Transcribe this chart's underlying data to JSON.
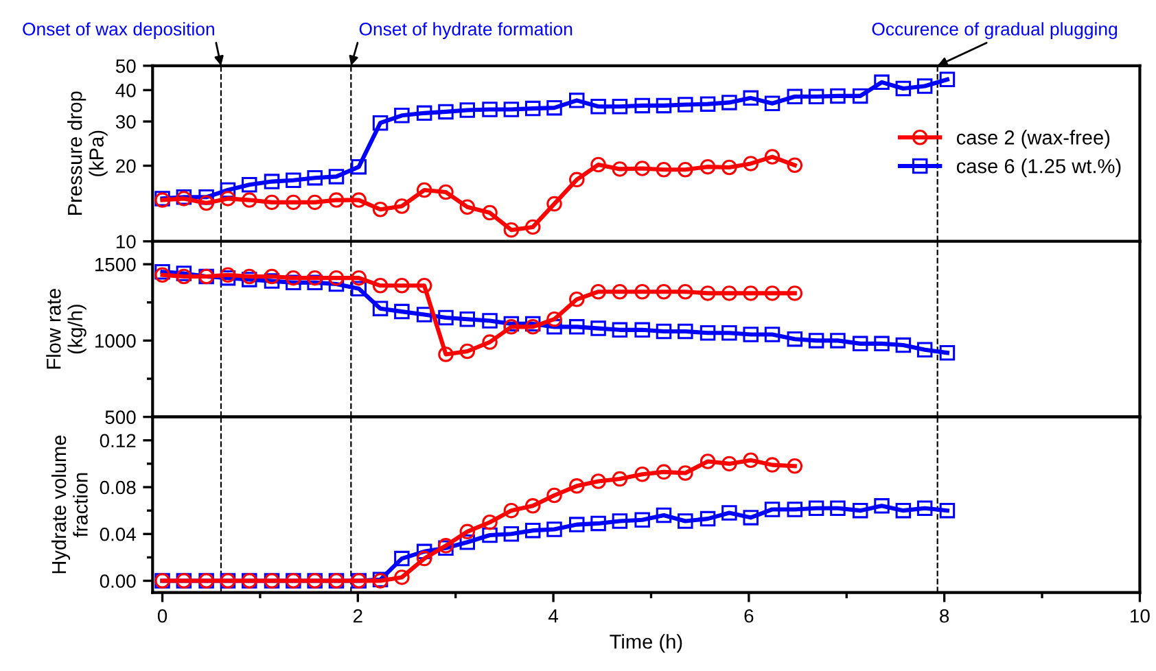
{
  "chart_data": [
    {
      "type": "line",
      "ylabel": "Pressure drop\n(kPa)",
      "log": "y",
      "xlim": [
        -0.1,
        10
      ],
      "xticks": [
        0,
        2,
        4,
        6,
        8,
        10,
        {
          "value": 1,
          "label": null
        },
        {
          "value": 3,
          "label": null
        },
        {
          "value": 5,
          "label": null
        },
        {
          "value": 7,
          "label": null
        },
        {
          "value": 9,
          "label": null
        }
      ],
      "ylim": [
        10,
        50
      ],
      "yticks": [
        10,
        20,
        30,
        40,
        50
      ],
      "tick_labels": "y",
      "grid": false,
      "legend": "right",
      "line_style": "solid",
      "ref_lines": [
        {
          "axis": "x",
          "value": 0.6,
          "label": "Onset of wax deposition",
          "color": "#000000",
          "line_style": "dashed"
        },
        {
          "axis": "x",
          "value": 1.93,
          "label": "Onset of hydrate formation",
          "color": "#000000",
          "line_style": "dashed"
        },
        {
          "axis": "x",
          "value": 7.93,
          "label": "Occurence of gradual plugging",
          "color": "#000000",
          "line_style": "dashed"
        }
      ],
      "series": [
        {
          "name": "case 2 (wax-free)",
          "color": "#ff0000",
          "marker": "circle",
          "x": [
            0,
            0.22,
            0.45,
            0.67,
            0.89,
            1.12,
            1.34,
            1.56,
            1.78,
            2.01,
            2.23,
            2.45,
            2.68,
            2.9,
            3.12,
            3.35,
            3.57,
            3.79,
            4.01,
            4.24,
            4.46,
            4.68,
            4.91,
            5.13,
            5.35,
            5.58,
            5.8,
            6.02,
            6.24,
            6.47
          ],
          "values": [
            14.6,
            14.8,
            14.2,
            14.8,
            14.6,
            14.3,
            14.3,
            14.3,
            14.6,
            14.6,
            13.4,
            13.8,
            16.0,
            15.7,
            13.7,
            13.0,
            11.1,
            11.4,
            14.1,
            17.6,
            20.2,
            19.4,
            19.5,
            19.3,
            19.3,
            19.8,
            19.7,
            20.4,
            21.7,
            20.1
          ]
        },
        {
          "name": "case 6 (1.25 wt.%)",
          "color": "#0000ff",
          "marker": "square",
          "x": [
            0,
            0.22,
            0.45,
            0.67,
            0.89,
            1.12,
            1.34,
            1.56,
            1.78,
            2.01,
            2.23,
            2.45,
            2.68,
            2.9,
            3.12,
            3.35,
            3.57,
            3.79,
            4.01,
            4.24,
            4.46,
            4.68,
            4.91,
            5.13,
            5.35,
            5.58,
            5.8,
            6.02,
            6.24,
            6.47,
            6.69,
            6.91,
            7.14,
            7.36,
            7.58,
            7.8,
            8.03
          ],
          "values": [
            14.8,
            15.0,
            15.0,
            16.0,
            16.8,
            17.3,
            17.5,
            17.9,
            18.1,
            19.8,
            29.6,
            31.7,
            32.4,
            32.8,
            33.3,
            33.5,
            33.5,
            33.8,
            34.0,
            36.4,
            34.4,
            34.4,
            34.7,
            34.7,
            35.0,
            35.2,
            35.7,
            37.2,
            35.4,
            37.7,
            37.7,
            37.9,
            37.9,
            43.0,
            40.6,
            41.5,
            44.1
          ]
        }
      ]
    },
    {
      "type": "line",
      "ylabel": "Flow rate\n(kg/h)",
      "xlim": [
        -0.1,
        10
      ],
      "xticks": [
        0,
        2,
        4,
        6,
        8,
        10,
        {
          "value": 1,
          "label": null
        },
        {
          "value": 3,
          "label": null
        },
        {
          "value": 5,
          "label": null
        },
        {
          "value": 7,
          "label": null
        },
        {
          "value": 9,
          "label": null
        }
      ],
      "ylim": [
        500,
        1650
      ],
      "yticks": [
        500,
        1000,
        1500,
        {
          "value": 750,
          "label": null
        },
        {
          "value": 1250,
          "label": null
        }
      ],
      "tick_labels": "y",
      "grid": false,
      "line_style": "solid",
      "ref_lines": [
        {
          "axis": "x",
          "value": 0.6,
          "color": "#000000",
          "line_style": "dashed"
        },
        {
          "axis": "x",
          "value": 1.93,
          "color": "#000000",
          "line_style": "dashed"
        },
        {
          "axis": "x",
          "value": 7.93,
          "color": "#000000",
          "line_style": "dashed"
        }
      ],
      "series": [
        {
          "color": "#ff0000",
          "marker": "circle",
          "x": [
            0,
            0.22,
            0.45,
            0.67,
            0.89,
            1.12,
            1.34,
            1.56,
            1.78,
            2.01,
            2.23,
            2.45,
            2.68,
            2.9,
            3.12,
            3.35,
            3.57,
            3.79,
            4.01,
            4.24,
            4.46,
            4.68,
            4.91,
            5.13,
            5.35,
            5.58,
            5.8,
            6.02,
            6.24,
            6.47
          ],
          "values": [
            1430,
            1420,
            1420,
            1430,
            1420,
            1420,
            1410,
            1410,
            1410,
            1410,
            1360,
            1360,
            1360,
            910,
            930,
            990,
            1090,
            1090,
            1140,
            1270,
            1320,
            1320,
            1320,
            1320,
            1320,
            1310,
            1310,
            1310,
            1310,
            1310
          ]
        },
        {
          "color": "#0000ff",
          "marker": "square",
          "x": [
            0,
            0.22,
            0.45,
            0.67,
            0.89,
            1.12,
            1.34,
            1.56,
            1.78,
            2.01,
            2.23,
            2.45,
            2.68,
            2.9,
            3.12,
            3.35,
            3.57,
            3.79,
            4.01,
            4.24,
            4.46,
            4.68,
            4.91,
            5.13,
            5.35,
            5.58,
            5.8,
            6.02,
            6.24,
            6.47,
            6.69,
            6.91,
            7.14,
            7.36,
            7.58,
            7.8,
            8.03
          ],
          "values": [
            1450,
            1440,
            1420,
            1410,
            1400,
            1390,
            1380,
            1380,
            1370,
            1340,
            1210,
            1190,
            1170,
            1150,
            1140,
            1130,
            1110,
            1110,
            1090,
            1090,
            1080,
            1070,
            1070,
            1060,
            1060,
            1050,
            1050,
            1040,
            1040,
            1010,
            1000,
            1000,
            980,
            980,
            970,
            940,
            920
          ]
        }
      ]
    },
    {
      "type": "line",
      "ylabel": "Hydrate volume\nfraction",
      "xlabel": "Time (h)",
      "xlim": [
        -0.1,
        10
      ],
      "xticks": [
        0,
        2,
        4,
        6,
        8,
        10,
        {
          "value": 1,
          "label": null
        },
        {
          "value": 3,
          "label": null
        },
        {
          "value": 5,
          "label": null
        },
        {
          "value": 7,
          "label": null
        },
        {
          "value": 9,
          "label": null
        }
      ],
      "ylim": [
        -0.01,
        0.14
      ],
      "yticks": [
        {
          "value": 0,
          "label": "0.00"
        },
        {
          "value": 0.04,
          "label": "0.04"
        },
        {
          "value": 0.08,
          "label": "0.08"
        },
        {
          "value": 0.12,
          "label": "0.12"
        },
        {
          "value": 0.02,
          "label": null
        },
        {
          "value": 0.06,
          "label": null
        },
        {
          "value": 0.1,
          "label": null
        }
      ],
      "grid": false,
      "line_style": "solid",
      "ref_lines": [
        {
          "axis": "x",
          "value": 0.6,
          "color": "#000000",
          "line_style": "dashed"
        },
        {
          "axis": "x",
          "value": 1.93,
          "color": "#000000",
          "line_style": "dashed"
        },
        {
          "axis": "x",
          "value": 7.93,
          "color": "#000000",
          "line_style": "dashed"
        }
      ],
      "series": [
        {
          "color": "#ff0000",
          "marker": "circle",
          "x": [
            0,
            0.22,
            0.45,
            0.67,
            0.89,
            1.12,
            1.34,
            1.56,
            1.78,
            2.01,
            2.23,
            2.45,
            2.68,
            2.9,
            3.12,
            3.35,
            3.57,
            3.79,
            4.01,
            4.24,
            4.46,
            4.68,
            4.91,
            5.13,
            5.35,
            5.58,
            5.8,
            6.02,
            6.24,
            6.47
          ],
          "values": [
            0,
            0,
            0,
            0,
            0,
            0,
            0,
            0,
            0,
            0,
            0,
            0.003,
            0.019,
            0.03,
            0.042,
            0.05,
            0.06,
            0.064,
            0.073,
            0.081,
            0.085,
            0.087,
            0.091,
            0.093,
            0.092,
            0.102,
            0.1,
            0.103,
            0.099,
            0.098
          ]
        },
        {
          "color": "#0000ff",
          "marker": "square",
          "x": [
            0,
            0.22,
            0.45,
            0.67,
            0.89,
            1.12,
            1.34,
            1.56,
            1.78,
            2.01,
            2.23,
            2.45,
            2.68,
            2.9,
            3.12,
            3.35,
            3.57,
            3.79,
            4.01,
            4.24,
            4.46,
            4.68,
            4.91,
            5.13,
            5.35,
            5.58,
            5.8,
            6.02,
            6.24,
            6.47,
            6.69,
            6.91,
            7.14,
            7.36,
            7.58,
            7.8,
            8.03
          ],
          "values": [
            0,
            0,
            0,
            0,
            0,
            0,
            0,
            0,
            0,
            0,
            0.001,
            0.019,
            0.025,
            0.028,
            0.033,
            0.039,
            0.04,
            0.043,
            0.044,
            0.048,
            0.049,
            0.051,
            0.052,
            0.056,
            0.051,
            0.053,
            0.058,
            0.054,
            0.061,
            0.061,
            0.062,
            0.062,
            0.06,
            0.064,
            0.06,
            0.062,
            0.06
          ]
        }
      ]
    }
  ]
}
